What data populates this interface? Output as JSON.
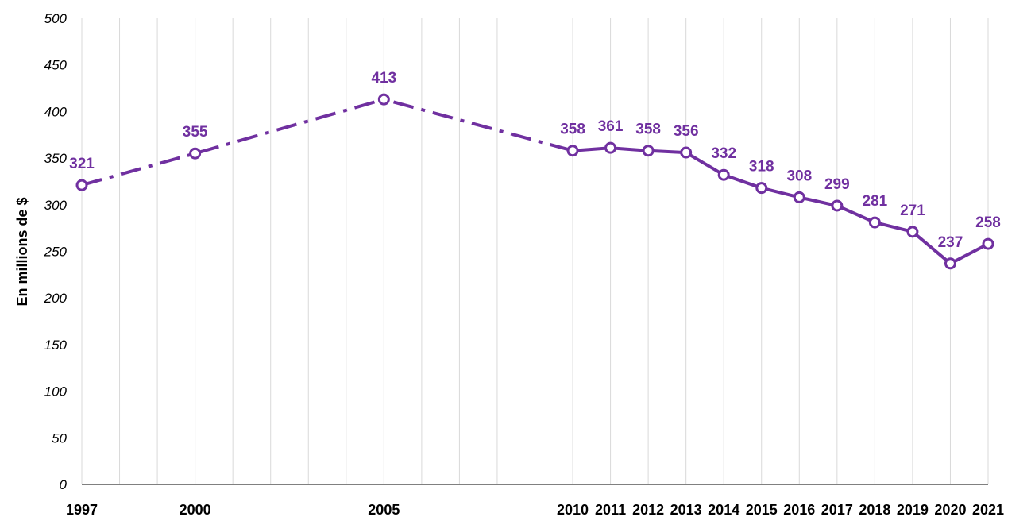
{
  "chart_data": {
    "type": "line",
    "ylabel": "En millions de $",
    "xlabel": "",
    "title": "",
    "ylim": [
      0,
      500
    ],
    "yticks": [
      0,
      50,
      100,
      150,
      200,
      250,
      300,
      350,
      400,
      450,
      500
    ],
    "grid": "vertical",
    "x": [
      "1997",
      "2000",
      "2005",
      "2010",
      "2011",
      "2012",
      "2013",
      "2014",
      "2015",
      "2016",
      "2017",
      "2018",
      "2019",
      "2020",
      "2021"
    ],
    "x_axis_start": 1997,
    "x_axis_end": 2021,
    "series": [
      {
        "values": [
          321,
          355,
          413,
          358,
          361,
          358,
          356,
          332,
          318,
          308,
          299,
          281,
          271,
          237,
          258
        ],
        "color": "#7030a0",
        "line_style_note": "dashed between 1997–2010, solid from 2010"
      }
    ],
    "data_labels": [
      "321",
      "355",
      "413",
      "358",
      "361",
      "358",
      "356",
      "332",
      "318",
      "308",
      "299",
      "281",
      "271",
      "237",
      "258"
    ]
  }
}
